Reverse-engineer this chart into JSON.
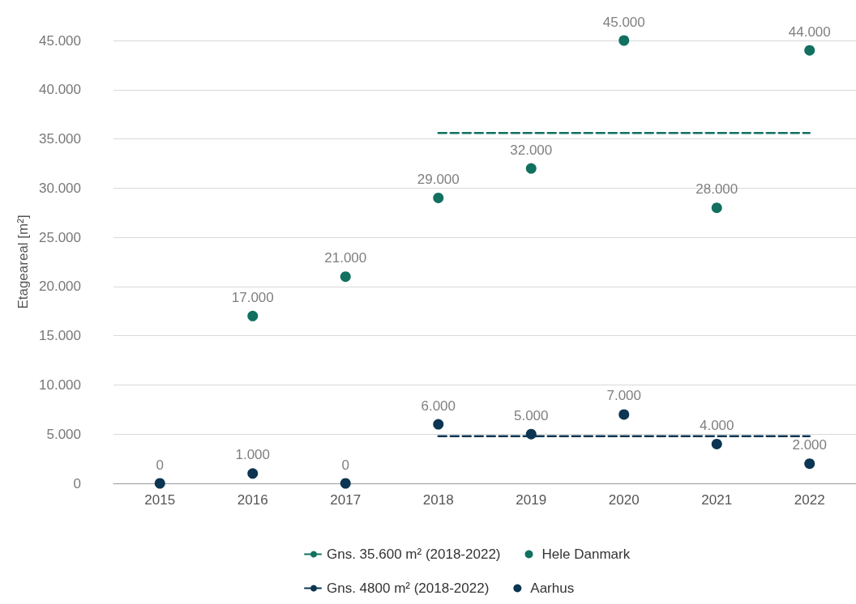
{
  "chart_data": {
    "type": "scatter",
    "ylabel": "Etageareal [m²]",
    "categories": [
      "2015",
      "2016",
      "2017",
      "2018",
      "2019",
      "2020",
      "2021",
      "2022"
    ],
    "series": [
      {
        "name": "Gns. 35.600 m² (2018-2022)",
        "type": "line",
        "line_style": "dashed",
        "marker": "none",
        "color": "#11705f",
        "values": [
          null,
          null,
          null,
          35600,
          35600,
          35600,
          35600,
          35600
        ]
      },
      {
        "name": "Hele Danmark",
        "marker": "circle",
        "color": "#11705f",
        "values": [
          null,
          17000,
          21000,
          29000,
          32000,
          45000,
          28000,
          44000
        ],
        "value_labels": [
          null,
          "17.000",
          "21.000",
          "29.000",
          "32.000",
          "45.000",
          "28.000",
          "44.000"
        ]
      },
      {
        "name": "Gns. 4800 m² (2018-2022)",
        "type": "line",
        "line_style": "dashed",
        "marker": "none",
        "color": "#0b3552",
        "values": [
          null,
          null,
          null,
          4800,
          4800,
          4800,
          4800,
          4800
        ]
      },
      {
        "name": "Aarhus",
        "marker": "circle",
        "color": "#0b3552",
        "values": [
          0,
          1000,
          0,
          6000,
          5000,
          7000,
          4000,
          2000
        ],
        "value_labels": [
          "0",
          "1.000",
          "0",
          "6.000",
          "5.000",
          "7.000",
          "4.000",
          "2.000"
        ]
      }
    ],
    "ylim": [
      0,
      45000
    ],
    "yticks": [
      0,
      {
        "value": 5000,
        "label": "5.000"
      },
      {
        "value": 10000,
        "label": "10.000"
      },
      {
        "value": 15000,
        "label": "15.000"
      },
      {
        "value": 20000,
        "label": "20.000"
      },
      {
        "value": 25000,
        "label": "25.000"
      },
      {
        "value": 30000,
        "label": "30.000"
      },
      {
        "value": 35000,
        "label": "35.000"
      },
      {
        "value": 40000,
        "label": "40.000"
      },
      {
        "value": 45000,
        "label": "45.000"
      }
    ],
    "grid": "y",
    "legend": "bottom"
  }
}
